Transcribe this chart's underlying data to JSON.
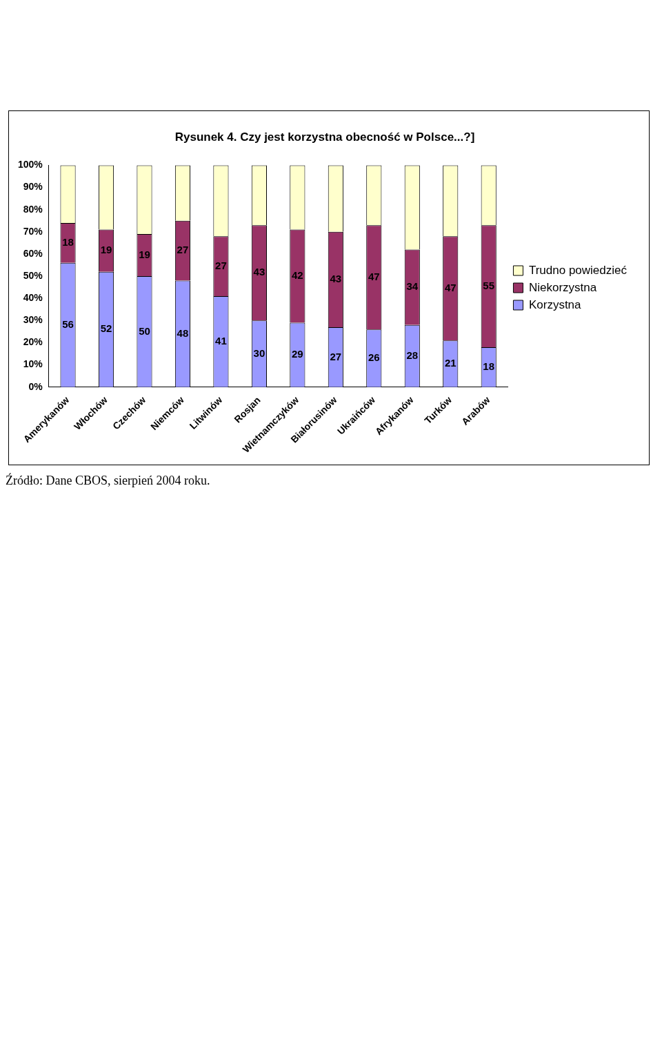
{
  "chart_data": {
    "type": "bar",
    "title": "Rysunek 4. Czy jest korzystna obecność w Polsce...?]",
    "categories": [
      "Amerykanów",
      "Włochów",
      "Czechów",
      "Niemców",
      "Litwinów",
      "Rosjan",
      "Wietnamczyków",
      "Białorusinów",
      "Ukraińców",
      "Afrykanów",
      "Turków",
      "Arabów"
    ],
    "series": [
      {
        "name": "Korzystna",
        "color": "#9999ff",
        "values": [
          56,
          52,
          50,
          48,
          41,
          30,
          29,
          27,
          26,
          28,
          21,
          18
        ],
        "value_labels": [
          "56",
          "52",
          "50",
          "48",
          "41",
          "30",
          "29",
          "27",
          "26",
          "28",
          "21",
          "18"
        ]
      },
      {
        "name": "Niekorzystna",
        "color": "#993366",
        "values": [
          18,
          19,
          19,
          27,
          27,
          43,
          42,
          43,
          47,
          34,
          47,
          55
        ],
        "value_labels": [
          "18",
          "19",
          "19",
          "27",
          "27",
          "43",
          "42",
          "43",
          "47",
          "34",
          "47",
          "55"
        ]
      },
      {
        "name": "Trudno powiedzieć",
        "color": "#ffffcc",
        "values": [
          26,
          29,
          31,
          25,
          32,
          27,
          29,
          30,
          27,
          38,
          32,
          27
        ]
      }
    ],
    "stacked": true,
    "ylim": [
      0,
      100
    ],
    "yticks": [
      {
        "value": 0,
        "label": "0%"
      },
      {
        "value": 10,
        "label": "10%"
      },
      {
        "value": 20,
        "label": "20%"
      },
      {
        "value": 30,
        "label": "30%"
      },
      {
        "value": 40,
        "label": "40%"
      },
      {
        "value": 50,
        "label": "50%"
      },
      {
        "value": 60,
        "label": "60%"
      },
      {
        "value": 70,
        "label": "70%"
      },
      {
        "value": 80,
        "label": "80%"
      },
      {
        "value": 90,
        "label": "90%"
      },
      {
        "value": 100,
        "label": "100%"
      }
    ],
    "grid": false,
    "legend": "right",
    "annotations": [
      "Źródło: Dane CBOS, sierpień 2004 roku."
    ]
  }
}
